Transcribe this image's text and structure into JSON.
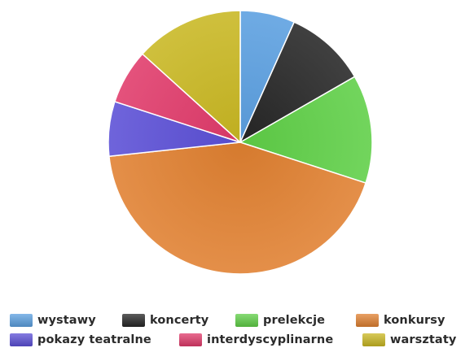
{
  "chart_data": {
    "type": "pie",
    "title": "",
    "start_angle_deg": 0,
    "direction": "clockwise",
    "legend_position": "bottom",
    "slices": [
      {
        "label": "wystawy",
        "value": 6.7,
        "color": "#5b9fe0"
      },
      {
        "label": "koncerty",
        "value": 10.0,
        "color": "#262626"
      },
      {
        "label": "prelekcje",
        "value": 13.3,
        "color": "#5fcf47"
      },
      {
        "label": "konkursy",
        "value": 43.3,
        "color": "#e08030"
      },
      {
        "label": "pokazy teatralne",
        "value": 6.7,
        "color": "#5b4fd6"
      },
      {
        "label": "interdyscyplinarne",
        "value": 6.7,
        "color": "#e03a6a"
      },
      {
        "label": "warsztaty",
        "value": 13.3,
        "color": "#c9b722"
      }
    ]
  }
}
